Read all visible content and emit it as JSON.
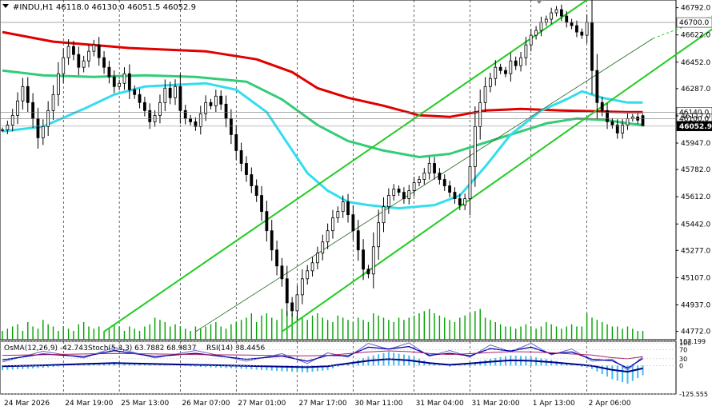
{
  "header": {
    "symbol_label": "#INDU,H1",
    "ohlc_text": "46118.0 46130.0 46051.5 46052.9"
  },
  "indicator_header": {
    "osma_text": "OsMA(12,26,9) -42.743",
    "stoch_text": "Stoch(5,3,3) 63.7882 68.9837",
    "rsi_text": "RSI(14) 38.4456"
  },
  "colors": {
    "background": "#ffffff",
    "candle": "#000000",
    "volume": "#00a000",
    "ma_red": "#e00000",
    "ma_green": "#33cc77",
    "ma_cyan": "#33ddee",
    "channel": "#22cc22",
    "osma": "#44bbee",
    "stoch_main": "#0000aa",
    "stoch_signal": "#6666cc",
    "rsi": "#aa2266",
    "grid": "#000000",
    "current_price_bg": "#000000",
    "current_price_fg": "#ffffff"
  },
  "chart_data": [
    {
      "type": "candlestick",
      "symbol": "#INDU",
      "timeframe": "H1",
      "price_axis_labels": [
        "46792.0",
        "46622.0",
        "46452.0",
        "46287.0",
        "46117.0",
        "45947.0",
        "45782.0",
        "45612.0",
        "45442.0",
        "45277.0",
        "45107.0",
        "44937.0",
        "44772.0"
      ],
      "level_labels": [
        {
          "value": 46700.0,
          "text": "46700.0"
        },
        {
          "value": 46140.0,
          "text": "46140.0"
        },
        {
          "value": 46100.0,
          "text": "46100.0"
        },
        {
          "value": 46052.9,
          "text": "46052.9",
          "current": true
        }
      ],
      "time_labels": [
        "24 Mar 2026",
        "24 Mar 19:00",
        "25 Mar 13:00",
        "26 Mar 07:00",
        "27 Mar 01:00",
        "27 Mar 17:00",
        "30 Mar 11:00",
        "31 Mar 04:00",
        "31 Mar 20:00",
        "1 Apr 13:00",
        "2 Apr 06:00"
      ],
      "ylim": [
        44720,
        46840
      ],
      "last_bar": {
        "open": 46118.0,
        "high": 46130.0,
        "low": 46051.5,
        "close": 46052.9
      },
      "closes": [
        46030,
        46060,
        46120,
        46210,
        46300,
        46200,
        46100,
        45980,
        46050,
        46150,
        46250,
        46380,
        46480,
        46550,
        46500,
        46420,
        46460,
        46520,
        46560,
        46480,
        46420,
        46360,
        46300,
        46320,
        46380,
        46280,
        46250,
        46200,
        46150,
        46080,
        46120,
        46200,
        46290,
        46230,
        46300,
        46150,
        46100,
        46080,
        46050,
        46130,
        46200,
        46180,
        46240,
        46190,
        46100,
        46000,
        45900,
        45820,
        45750,
        45680,
        45620,
        45520,
        45400,
        45280,
        45180,
        45100,
        44950,
        44900,
        45000,
        45100,
        45150,
        45200,
        45260,
        45330,
        45400,
        45480,
        45520,
        45580,
        45500,
        45400,
        45280,
        45160,
        45130,
        45300,
        45450,
        45550,
        45620,
        45660,
        45640,
        45600,
        45650,
        45700,
        45720,
        45760,
        45820,
        45760,
        45720,
        45680,
        45640,
        45600,
        45560,
        45600,
        45800,
        46050,
        46200,
        46300,
        46350,
        46420,
        46400,
        46380,
        46460,
        46430,
        46480,
        46560,
        46620,
        46650,
        46700,
        46720,
        46760,
        46780,
        46740,
        46700,
        46680,
        46640,
        46620,
        46700,
        46400,
        46200,
        46150,
        46080,
        46060,
        46010,
        46060,
        46100,
        46110,
        46090,
        46053
      ],
      "ma_red_points": [
        [
          0,
          46640
        ],
        [
          10,
          46580
        ],
        [
          25,
          46540
        ],
        [
          40,
          46520
        ],
        [
          50,
          46470
        ],
        [
          57,
          46390
        ],
        [
          62,
          46290
        ],
        [
          68,
          46230
        ],
        [
          75,
          46180
        ],
        [
          82,
          46120
        ],
        [
          88,
          46110
        ],
        [
          95,
          46150
        ],
        [
          102,
          46160
        ],
        [
          110,
          46150
        ],
        [
          117,
          46145
        ],
        [
          123,
          46140
        ],
        [
          126,
          46140
        ]
      ],
      "ma_green_points": [
        [
          0,
          46400
        ],
        [
          8,
          46370
        ],
        [
          18,
          46360
        ],
        [
          28,
          46370
        ],
        [
          38,
          46360
        ],
        [
          48,
          46330
        ],
        [
          55,
          46220
        ],
        [
          62,
          46060
        ],
        [
          68,
          45960
        ],
        [
          75,
          45900
        ],
        [
          82,
          45860
        ],
        [
          88,
          45880
        ],
        [
          93,
          45930
        ],
        [
          100,
          46000
        ],
        [
          107,
          46070
        ],
        [
          113,
          46100
        ],
        [
          119,
          46090
        ],
        [
          123,
          46070
        ],
        [
          126,
          46060
        ]
      ],
      "ma_cyan_points": [
        [
          0,
          46020
        ],
        [
          8,
          46050
        ],
        [
          16,
          46160
        ],
        [
          22,
          46250
        ],
        [
          28,
          46300
        ],
        [
          34,
          46310
        ],
        [
          40,
          46320
        ],
        [
          46,
          46280
        ],
        [
          52,
          46140
        ],
        [
          56,
          45950
        ],
        [
          60,
          45760
        ],
        [
          64,
          45650
        ],
        [
          68,
          45580
        ],
        [
          72,
          45560
        ],
        [
          78,
          45540
        ],
        [
          85,
          45560
        ],
        [
          90,
          45620
        ],
        [
          95,
          45800
        ],
        [
          100,
          46000
        ],
        [
          106,
          46150
        ],
        [
          111,
          46220
        ],
        [
          114,
          46270
        ],
        [
          118,
          46230
        ],
        [
          123,
          46200
        ],
        [
          126,
          46200
        ]
      ],
      "channel_lines": [
        {
          "style": "solid",
          "from": [
            20,
            44770
          ],
          "to": [
            115,
            46840
          ]
        },
        {
          "style": "solid",
          "from": [
            55,
            44770
          ],
          "to": [
            146,
            46800
          ]
        },
        {
          "style": "thin",
          "from": [
            38,
            44770
          ],
          "to": [
            128,
            46600
          ]
        },
        {
          "style": "dotted",
          "from": [
            128,
            46600
          ],
          "to": [
            148,
            46840
          ]
        }
      ],
      "volume_relative": [
        0.2,
        0.25,
        0.3,
        0.35,
        0.2,
        0.4,
        0.3,
        0.25,
        0.45,
        0.35,
        0.3,
        0.2,
        0.3,
        0.25,
        0.2,
        0.35,
        0.4,
        0.3,
        0.25,
        0.3,
        0.2,
        0.25,
        0.35,
        0.3,
        0.2,
        0.3,
        0.25,
        0.2,
        0.3,
        0.35,
        0.5,
        0.45,
        0.4,
        0.3,
        0.35,
        0.3,
        0.25,
        0.2,
        0.3,
        0.25,
        0.3,
        0.35,
        0.4,
        0.3,
        0.25,
        0.35,
        0.4,
        0.45,
        0.5,
        0.6,
        0.4,
        0.55,
        0.6,
        0.5,
        0.45,
        0.7,
        0.65,
        0.6,
        0.55,
        0.5,
        0.45,
        0.55,
        0.6,
        0.5,
        0.45,
        0.4,
        0.55,
        0.5,
        0.45,
        0.4,
        0.5,
        0.45,
        0.4,
        0.6,
        0.55,
        0.5,
        0.45,
        0.4,
        0.5,
        0.45,
        0.5,
        0.55,
        0.6,
        0.65,
        0.7,
        0.6,
        0.55,
        0.5,
        0.45,
        0.4,
        0.5,
        0.55,
        0.6,
        0.65,
        0.7,
        0.5,
        0.45,
        0.4,
        0.35,
        0.3,
        0.3,
        0.25,
        0.3,
        0.35,
        0.3,
        0.25,
        0.3,
        0.4,
        0.35,
        0.3,
        0.25,
        0.3,
        0.35,
        0.3,
        0.3,
        0.6,
        0.5,
        0.45,
        0.4,
        0.35,
        0.3,
        0.3,
        0.25,
        0.3,
        0.25,
        0.2,
        0.2
      ]
    },
    {
      "type": "oscillators",
      "axis_labels": [
        "107.199",
        "100",
        "70",
        "30",
        "0",
        "-125.555"
      ],
      "ylim": [
        -125.555,
        107.199
      ],
      "osma": {
        "name": "OsMA(12,26,9)",
        "last": -42.743,
        "points": [
          [
            0,
            -20
          ],
          [
            8,
            -10
          ],
          [
            16,
            5
          ],
          [
            22,
            15
          ],
          [
            30,
            5
          ],
          [
            38,
            -5
          ],
          [
            48,
            -15
          ],
          [
            55,
            -25
          ],
          [
            60,
            -30
          ],
          [
            64,
            -20
          ],
          [
            68,
            10
          ],
          [
            72,
            40
          ],
          [
            76,
            60
          ],
          [
            80,
            45
          ],
          [
            84,
            15
          ],
          [
            88,
            -5
          ],
          [
            92,
            10
          ],
          [
            96,
            30
          ],
          [
            100,
            45
          ],
          [
            104,
            40
          ],
          [
            108,
            25
          ],
          [
            112,
            5
          ],
          [
            116,
            -15
          ],
          [
            120,
            -60
          ],
          [
            123,
            -80
          ],
          [
            126,
            -43
          ]
        ]
      },
      "stoch": {
        "name": "Stoch(5,3,3)",
        "main": 63.7882,
        "signal": 68.9837
      },
      "rsi": {
        "name": "RSI(14)",
        "value": 38.4456
      }
    }
  ]
}
